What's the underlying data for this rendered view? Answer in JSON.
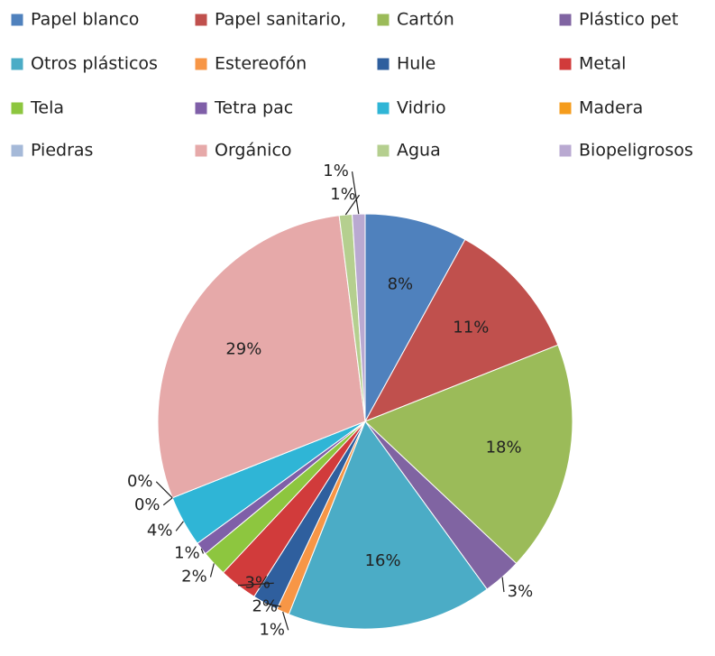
{
  "chart_data": {
    "type": "pie",
    "categories": [
      "Papel blanco",
      "Papel sanitario,",
      "Cartón",
      "Plástico pet",
      "Otros plásticos",
      "Estereofón",
      "Hule",
      "Metal",
      "Tela",
      "Tetra pac",
      "Vidrio",
      "Madera",
      "Piedras",
      "Orgánico",
      "Agua",
      "Biopeligrosos"
    ],
    "values": [
      8,
      11,
      18,
      3,
      16,
      1,
      2,
      3,
      2,
      1,
      4,
      0,
      0,
      29,
      1,
      1
    ],
    "value_labels": [
      "8%",
      "11%",
      "18%",
      "3%",
      "16%",
      "1%",
      "2%",
      "3%",
      "2%",
      "1%",
      "4%",
      "0%",
      "0%",
      "29%",
      "1%",
      "1%"
    ],
    "colors": [
      "#4f81bd",
      "#c0504d",
      "#9bbb59",
      "#8064a2",
      "#4bacc6",
      "#f79646",
      "#2f5f9e",
      "#d13b3b",
      "#8dc63f",
      "#7f5fa8",
      "#2fb5d6",
      "#f59c1c",
      "#a5b9d8",
      "#e6a9a9",
      "#b5cf8f",
      "#b9a9d1"
    ],
    "legend": "top"
  }
}
